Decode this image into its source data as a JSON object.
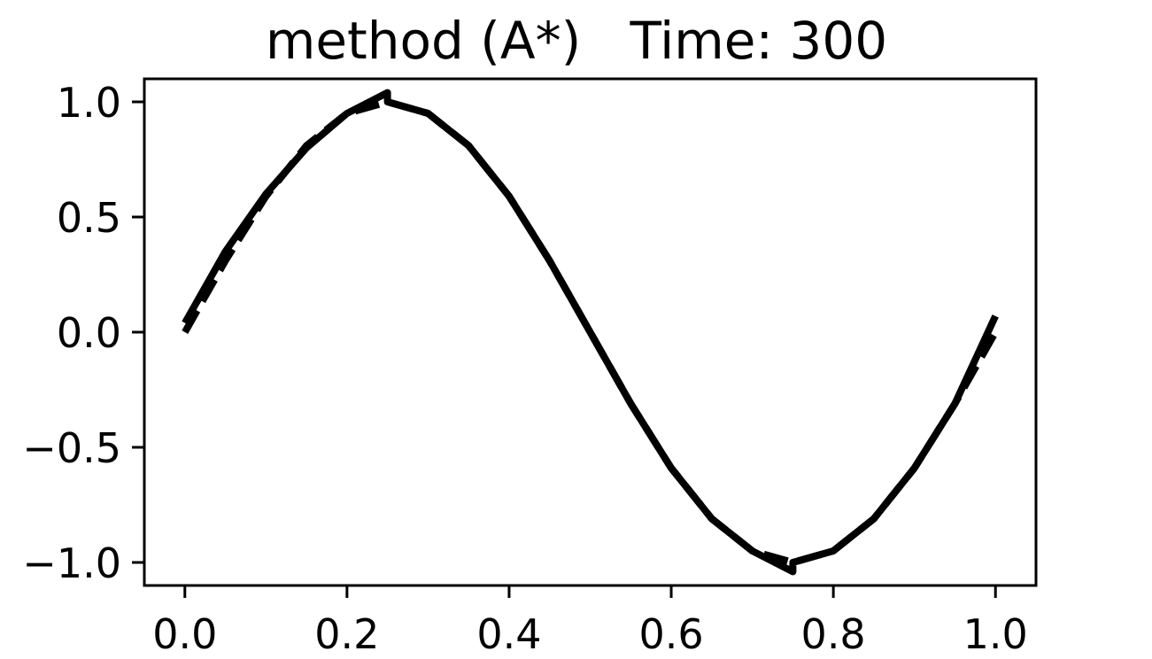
{
  "chart_data": {
    "type": "line",
    "title": "method (A*)   Time: 300",
    "xlabel": "",
    "ylabel": "",
    "xlim": [
      -0.05,
      1.05
    ],
    "ylim": [
      -1.1,
      1.1
    ],
    "grid": false,
    "x_ticks": [
      "0.0",
      "0.2",
      "0.4",
      "0.6",
      "0.8",
      "1.0"
    ],
    "y_ticks": [
      "1.0",
      "0.5",
      "0.0",
      "−0.5",
      "−1.0"
    ],
    "x_tick_values": [
      0.0,
      0.2,
      0.4,
      0.6,
      0.8,
      1.0
    ],
    "y_tick_values": [
      1.0,
      0.5,
      0.0,
      -0.5,
      -1.0
    ],
    "series": [
      {
        "style": "solid",
        "color": "#000000",
        "x": [
          0.0,
          0.05,
          0.1,
          0.15,
          0.2,
          0.25,
          0.25,
          0.3,
          0.35,
          0.4,
          0.45,
          0.5,
          0.55,
          0.6,
          0.65,
          0.7,
          0.75,
          0.75,
          0.8,
          0.85,
          0.9,
          0.95,
          1.0
        ],
        "y": [
          0.04,
          0.35,
          0.6,
          0.8,
          0.95,
          1.04,
          1.0,
          0.95,
          0.81,
          0.59,
          0.31,
          0.0,
          -0.31,
          -0.59,
          -0.81,
          -0.95,
          -1.04,
          -1.0,
          -0.95,
          -0.81,
          -0.59,
          -0.31,
          0.07
        ]
      },
      {
        "style": "dashed",
        "color": "#000000",
        "x": [
          0.0,
          0.05,
          0.1,
          0.15,
          0.2,
          0.25,
          0.3,
          0.35,
          0.4,
          0.45,
          0.5,
          0.55,
          0.6,
          0.65,
          0.7,
          0.75,
          0.8,
          0.85,
          0.9,
          0.95,
          1.0
        ],
        "y": [
          0.0,
          0.31,
          0.59,
          0.81,
          0.95,
          1.0,
          0.95,
          0.81,
          0.59,
          0.31,
          0.0,
          -0.31,
          -0.59,
          -0.81,
          -0.95,
          -1.0,
          -0.95,
          -0.81,
          -0.59,
          -0.31,
          0.0
        ]
      }
    ]
  }
}
